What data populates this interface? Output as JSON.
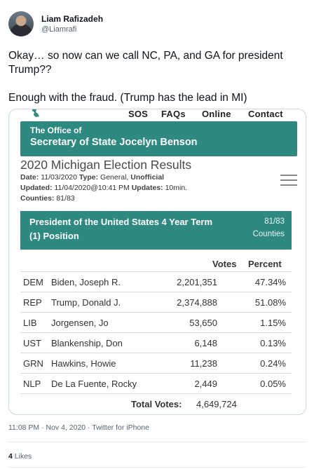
{
  "tweet": {
    "display_name": "Liam Rafizadeh",
    "handle": "@Liamrafi",
    "text_line1": "Okay… so now can we call NC, PA, and GA for president Trump??",
    "text_line2": "Enough with the fraud. (Trump has the lead in MI)",
    "timestamp": "11:08 PM · Nov 4, 2020 · Twitter for iPhone",
    "likes_count": "4",
    "likes_label": "Likes"
  },
  "screenshot": {
    "nav": [
      "SOS",
      "FAQs",
      "Online",
      "Contact"
    ],
    "office_line1": "The Office of",
    "office_line2": "Secretary of State Jocelyn Benson",
    "results_title": "2020 Michigan Election Results",
    "meta": {
      "date_label": "Date:",
      "date_value": "11/03/2020",
      "type_label": "Type:",
      "type_value": "General,",
      "type_flag": "Unofficial",
      "updated_label": "Updated:",
      "updated_value": "11/04/2020@10:41 PM",
      "updates_label": "Updates:",
      "updates_value": "10min.",
      "counties_label": "Counties:",
      "counties_value": "81/83"
    },
    "race": {
      "title_line1": "President of the United States 4 Year Term",
      "title_line2": "(1) Position",
      "count": "81/83",
      "counties_label": "Counties"
    },
    "columns": {
      "votes": "Votes",
      "percent": "Percent"
    },
    "rows": [
      {
        "party": "DEM",
        "name": "Biden, Joseph R.",
        "votes": "2,201,351",
        "percent": "47.34%"
      },
      {
        "party": "REP",
        "name": "Trump, Donald J.",
        "votes": "2,374,888",
        "percent": "51.08%"
      },
      {
        "party": "LIB",
        "name": "Jorgensen, Jo",
        "votes": "53,650",
        "percent": "1.15%"
      },
      {
        "party": "UST",
        "name": "Blankenship, Don",
        "votes": "6,148",
        "percent": "0.13%"
      },
      {
        "party": "GRN",
        "name": "Hawkins, Howie",
        "votes": "11,238",
        "percent": "0.24%"
      },
      {
        "party": "NLP",
        "name": "De La Fuente, Rocky",
        "votes": "2,449",
        "percent": "0.05%"
      }
    ],
    "total_label": "Total Votes:",
    "total_value": "4,649,724"
  },
  "colors": {
    "banner": "#2e8a80",
    "text": "#0f1419",
    "muted": "#536471"
  }
}
